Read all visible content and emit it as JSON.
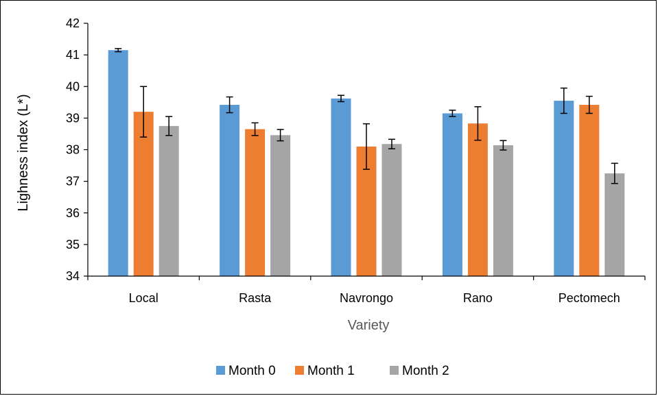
{
  "chart_data": {
    "type": "bar",
    "categories": [
      "Local",
      "Rasta",
      "Navrongo",
      "Rano",
      "Pectomech"
    ],
    "series": [
      {
        "name": "Month 0",
        "color": "#5B9BD5",
        "values": [
          41.15,
          39.42,
          39.62,
          39.15,
          39.55
        ],
        "errors": [
          0.05,
          0.25,
          0.1,
          0.1,
          0.4
        ]
      },
      {
        "name": "Month 1",
        "color": "#ED7D31",
        "values": [
          39.2,
          38.65,
          38.1,
          38.83,
          39.42
        ],
        "errors": [
          0.8,
          0.2,
          0.72,
          0.53,
          0.27
        ]
      },
      {
        "name": "Month 2",
        "color": "#A5A5A5",
        "values": [
          38.75,
          38.46,
          38.18,
          38.14,
          37.25
        ],
        "errors": [
          0.3,
          0.18,
          0.15,
          0.15,
          0.32
        ]
      }
    ],
    "xlabel": "Variety",
    "ylabel": "Lighness index (L*)",
    "ylim": [
      34,
      42
    ],
    "yticks": [
      34,
      35,
      36,
      37,
      38,
      39,
      40,
      41,
      42
    ],
    "grid": false,
    "legend_position": "bottom"
  }
}
